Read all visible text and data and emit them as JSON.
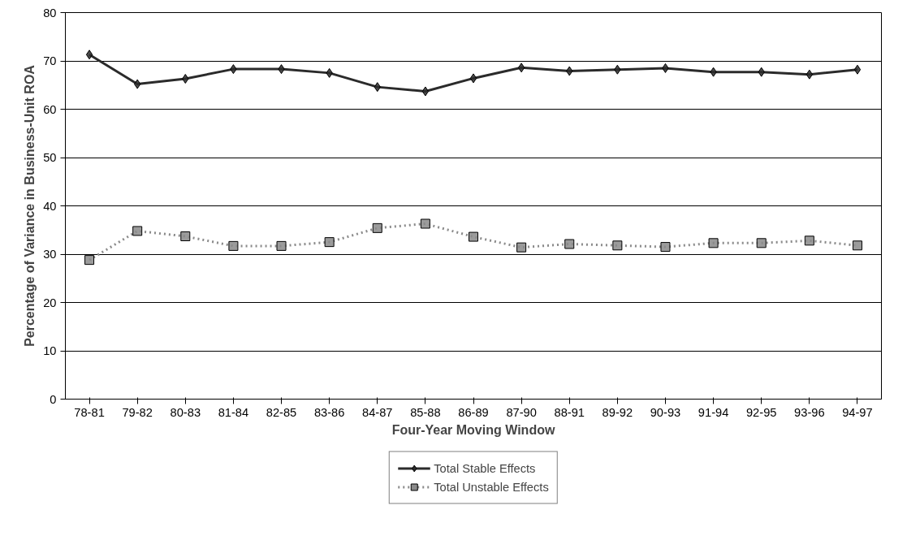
{
  "chart_data": {
    "type": "line",
    "xlabel": "Four-Year Moving Window",
    "ylabel": "Percentage of Variance in Business-Unit ROA",
    "categories": [
      "78-81",
      "79-82",
      "80-83",
      "81-84",
      "82-85",
      "83-86",
      "84-87",
      "85-88",
      "86-89",
      "87-90",
      "88-91",
      "89-92",
      "90-93",
      "91-94",
      "92-95",
      "93-96",
      "94-97"
    ],
    "series": [
      {
        "name": "Total Stable Effects",
        "color": "#2b2b2b",
        "marker": "diamond",
        "line_style": "solid",
        "values": [
          71.3,
          65.2,
          66.3,
          68.3,
          68.3,
          67.5,
          64.6,
          63.7,
          66.4,
          68.6,
          67.9,
          68.2,
          68.5,
          67.7,
          67.7,
          67.2,
          68.2
        ]
      },
      {
        "name": "Total Unstable Effects",
        "color": "#8a8a8a",
        "marker": "square",
        "line_style": "dotted",
        "values": [
          28.8,
          34.8,
          33.7,
          31.7,
          31.7,
          32.5,
          35.4,
          36.3,
          33.6,
          31.4,
          32.1,
          31.8,
          31.5,
          32.3,
          32.3,
          32.8,
          31.8
        ]
      }
    ],
    "ylim": [
      0,
      80
    ],
    "yticks": [
      0,
      10,
      20,
      30,
      40,
      50,
      60,
      70,
      80
    ],
    "grid": "y",
    "legend": "bottom"
  }
}
